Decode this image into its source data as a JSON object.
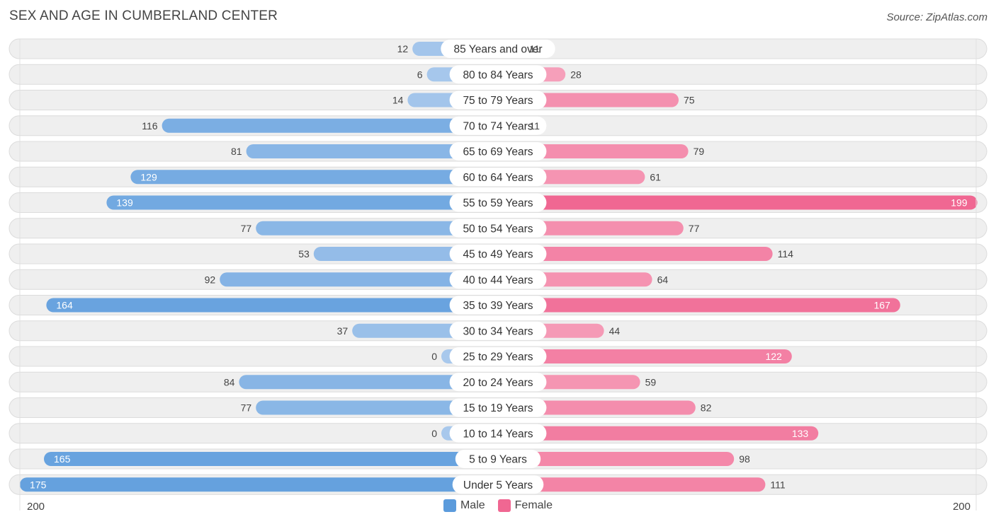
{
  "title": "SEX AND AGE IN CUMBERLAND CENTER",
  "source": "Source: ZipAtlas.com",
  "legend": {
    "male_label": "Male",
    "female_label": "Female"
  },
  "axis": {
    "left_label": "200",
    "right_label": "200"
  },
  "colors": {
    "male": "#5b9bdc",
    "male_light": "#a8c8ec",
    "female": "#f06792",
    "female_light": "#f7a8c0",
    "row_bg": "#efefef"
  },
  "chart_data": {
    "type": "bar",
    "orientation": "horizontal-diverging",
    "title": "SEX AND AGE IN CUMBERLAND CENTER",
    "xlim": [
      -200,
      200
    ],
    "categories": [
      "85 Years and over",
      "80 to 84 Years",
      "75 to 79 Years",
      "70 to 74 Years",
      "65 to 69 Years",
      "60 to 64 Years",
      "55 to 59 Years",
      "50 to 54 Years",
      "45 to 49 Years",
      "40 to 44 Years",
      "35 to 39 Years",
      "30 to 34 Years",
      "25 to 29 Years",
      "20 to 24 Years",
      "15 to 19 Years",
      "10 to 14 Years",
      "5 to 9 Years",
      "Under 5 Years"
    ],
    "series": [
      {
        "name": "Male",
        "values": [
          12,
          6,
          14,
          116,
          81,
          129,
          139,
          77,
          53,
          92,
          164,
          37,
          0,
          84,
          77,
          0,
          165,
          175
        ]
      },
      {
        "name": "Female",
        "values": [
          11,
          28,
          75,
          11,
          79,
          61,
          199,
          77,
          114,
          64,
          167,
          44,
          122,
          59,
          82,
          133,
          98,
          111
        ]
      }
    ],
    "legend_position": "bottom-center"
  }
}
